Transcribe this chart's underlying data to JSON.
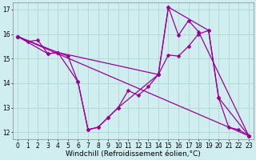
{
  "background_color": "#d0eef0",
  "line_color": "#990099",
  "grid_color": "#b0d8d0",
  "xlabel": "Windchill (Refroidissement éolien,°C)",
  "xlabel_fontsize": 6.5,
  "tick_fontsize": 5.5,
  "xlim": [
    -0.5,
    23.5
  ],
  "ylim": [
    11.7,
    17.3
  ],
  "yticks": [
    12,
    13,
    14,
    15,
    16,
    17
  ],
  "xticks": [
    0,
    1,
    2,
    3,
    4,
    5,
    6,
    7,
    8,
    9,
    10,
    11,
    12,
    13,
    14,
    15,
    16,
    17,
    18,
    19,
    20,
    21,
    22,
    23
  ],
  "series1": [
    [
      0,
      15.9
    ],
    [
      1,
      15.7
    ],
    [
      2,
      15.75
    ],
    [
      3,
      15.2
    ],
    [
      4,
      15.25
    ],
    [
      5,
      15.1
    ],
    [
      6,
      14.05
    ],
    [
      7,
      12.1
    ],
    [
      8,
      12.2
    ],
    [
      9,
      12.6
    ],
    [
      10,
      13.0
    ],
    [
      11,
      13.7
    ],
    [
      12,
      13.5
    ],
    [
      13,
      13.85
    ],
    [
      14,
      14.35
    ],
    [
      15,
      15.15
    ],
    [
      16,
      15.1
    ],
    [
      17,
      15.5
    ],
    [
      18,
      16.0
    ],
    [
      19,
      16.15
    ],
    [
      20,
      13.4
    ],
    [
      21,
      12.2
    ],
    [
      22,
      12.1
    ],
    [
      23,
      11.85
    ]
  ],
  "series2": [
    [
      0,
      15.9
    ],
    [
      3,
      15.2
    ],
    [
      4,
      15.25
    ],
    [
      6,
      14.05
    ],
    [
      7,
      12.1
    ],
    [
      8,
      12.2
    ],
    [
      9,
      12.6
    ],
    [
      10,
      13.0
    ],
    [
      14,
      14.35
    ],
    [
      15,
      17.1
    ],
    [
      16,
      15.95
    ],
    [
      17,
      16.55
    ],
    [
      18,
      16.1
    ],
    [
      23,
      11.85
    ]
  ],
  "series3": [
    [
      0,
      15.9
    ],
    [
      4,
      15.25
    ],
    [
      14,
      14.35
    ],
    [
      15,
      17.1
    ],
    [
      19,
      16.15
    ],
    [
      20,
      13.4
    ],
    [
      23,
      11.85
    ]
  ],
  "series4": [
    [
      0,
      15.9
    ],
    [
      23,
      11.85
    ]
  ]
}
